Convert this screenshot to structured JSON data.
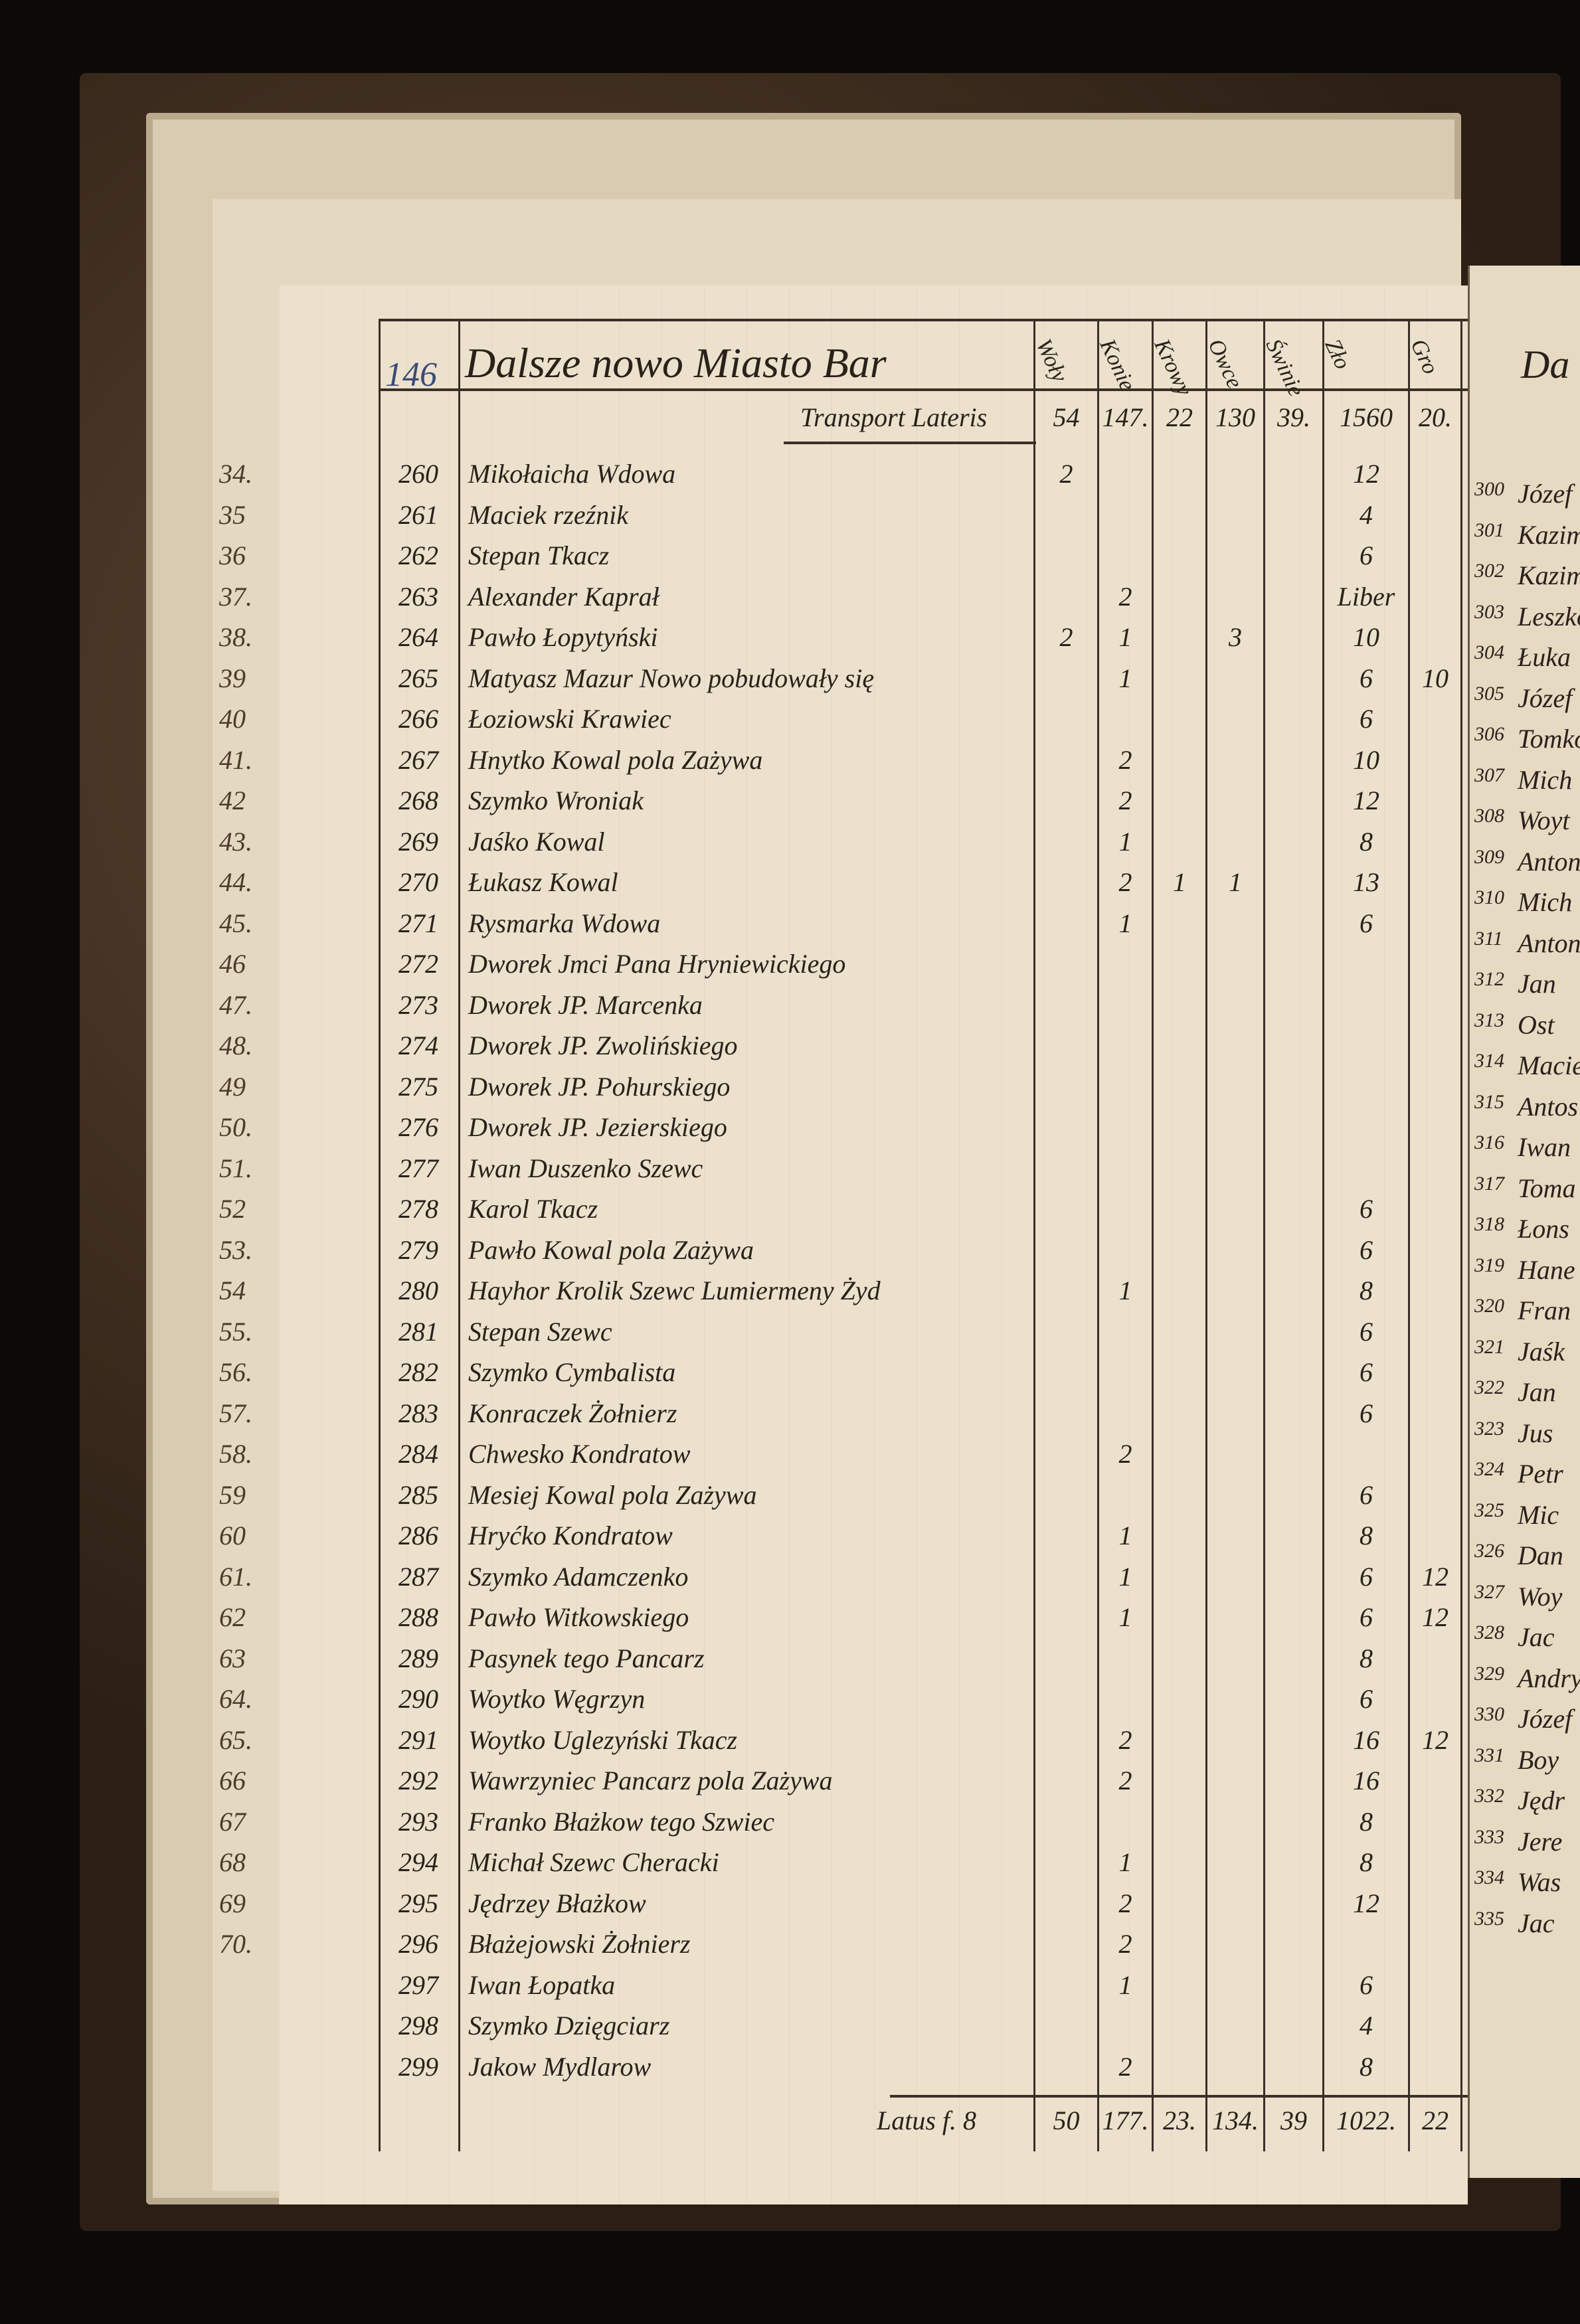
{
  "page_number": "146",
  "title": "Dalsze nowo Miasto Bar",
  "columns": [
    "Woły",
    "Konie",
    "Krowy",
    "Owce",
    "Świnie",
    "Zło",
    "Gro"
  ],
  "transport": {
    "label": "Transport Lateris",
    "values": [
      "54",
      "147.",
      "22",
      "130",
      "39.",
      "1560",
      "20."
    ]
  },
  "rows": [
    {
      "m": "34.",
      "n": "260",
      "name": "Mikołaicha Wdowa",
      "v": [
        "2",
        "",
        "",
        "",
        "",
        "12",
        ""
      ]
    },
    {
      "m": "35",
      "n": "261",
      "name": "Maciek rzeźnik",
      "v": [
        "",
        "",
        "",
        "",
        "",
        "4",
        ""
      ]
    },
    {
      "m": "36",
      "n": "262",
      "name": "Stepan Tkacz",
      "v": [
        "",
        "",
        "",
        "",
        "",
        "6",
        ""
      ]
    },
    {
      "m": "37.",
      "n": "263",
      "name": "Alexander Kaprał",
      "v": [
        "",
        "2",
        "",
        "",
        "",
        "Liber",
        ""
      ]
    },
    {
      "m": "38.",
      "n": "264",
      "name": "Pawło Łopytyński",
      "v": [
        "2",
        "1",
        "",
        "3",
        "",
        "10",
        ""
      ]
    },
    {
      "m": "39",
      "n": "265",
      "name": "Matyasz Mazur Nowo pobudowały się",
      "v": [
        "",
        "1",
        "",
        "",
        "",
        "6",
        "10"
      ]
    },
    {
      "m": "40",
      "n": "266",
      "name": "Łoziowski Krawiec",
      "v": [
        "",
        "",
        "",
        "",
        "",
        "6",
        ""
      ]
    },
    {
      "m": "41.",
      "n": "267",
      "name": "Hnytko Kowal pola Zażywa",
      "v": [
        "",
        "2",
        "",
        "",
        "",
        "10",
        ""
      ]
    },
    {
      "m": "42",
      "n": "268",
      "name": "Szymko Wroniak",
      "v": [
        "",
        "2",
        "",
        "",
        "",
        "12",
        ""
      ]
    },
    {
      "m": "43.",
      "n": "269",
      "name": "Jaśko Kowal",
      "v": [
        "",
        "1",
        "",
        "",
        "",
        "8",
        ""
      ]
    },
    {
      "m": "44.",
      "n": "270",
      "name": "Łukasz Kowal",
      "v": [
        "",
        "2",
        "1",
        "1",
        "",
        "13",
        ""
      ]
    },
    {
      "m": "45.",
      "n": "271",
      "name": "Rysmarka Wdowa",
      "v": [
        "",
        "1",
        "",
        "",
        "",
        "6",
        ""
      ]
    },
    {
      "m": "46",
      "n": "272",
      "name": "Dworek Jmci Pana Hryniewickiego",
      "v": [
        "",
        "",
        "",
        "",
        "",
        "",
        ""
      ]
    },
    {
      "m": "47.",
      "n": "273",
      "name": "Dworek JP. Marcenka",
      "v": [
        "",
        "",
        "",
        "",
        "",
        "",
        ""
      ]
    },
    {
      "m": "48.",
      "n": "274",
      "name": "Dworek JP. Zwolińskiego",
      "v": [
        "",
        "",
        "",
        "",
        "",
        "",
        ""
      ]
    },
    {
      "m": "49",
      "n": "275",
      "name": "Dworek JP. Pohurskiego",
      "v": [
        "",
        "",
        "",
        "",
        "",
        "",
        ""
      ]
    },
    {
      "m": "50.",
      "n": "276",
      "name": "Dworek JP. Jezierskiego",
      "v": [
        "",
        "",
        "",
        "",
        "",
        "",
        ""
      ]
    },
    {
      "m": "51.",
      "n": "277",
      "name": "Iwan Duszenko Szewc",
      "v": [
        "",
        "",
        "",
        "",
        "",
        "",
        ""
      ]
    },
    {
      "m": "52",
      "n": "278",
      "name": "Karol Tkacz",
      "v": [
        "",
        "",
        "",
        "",
        "",
        "6",
        ""
      ]
    },
    {
      "m": "53.",
      "n": "279",
      "name": "Pawło Kowal pola Zażywa",
      "v": [
        "",
        "",
        "",
        "",
        "",
        "6",
        ""
      ]
    },
    {
      "m": "54",
      "n": "280",
      "name": "Hayhor Krolik Szewc Lumiermeny Żyd",
      "v": [
        "",
        "1",
        "",
        "",
        "",
        "8",
        ""
      ]
    },
    {
      "m": "55.",
      "n": "281",
      "name": "Stepan Szewc",
      "v": [
        "",
        "",
        "",
        "",
        "",
        "6",
        ""
      ]
    },
    {
      "m": "56.",
      "n": "282",
      "name": "Szymko Cymbalista",
      "v": [
        "",
        "",
        "",
        "",
        "",
        "6",
        ""
      ]
    },
    {
      "m": "57.",
      "n": "283",
      "name": "Konraczek Żołnierz",
      "v": [
        "",
        "",
        "",
        "",
        "",
        "6",
        ""
      ]
    },
    {
      "m": "58.",
      "n": "284",
      "name": "Chwesko Kondratow",
      "v": [
        "",
        "2",
        "",
        "",
        "",
        "",
        ""
      ]
    },
    {
      "m": "59",
      "n": "285",
      "name": "Mesiej Kowal pola Zażywa",
      "v": [
        "",
        "",
        "",
        "",
        "",
        "6",
        ""
      ]
    },
    {
      "m": "60",
      "n": "286",
      "name": "Hryćko Kondratow",
      "v": [
        "",
        "1",
        "",
        "",
        "",
        "8",
        ""
      ]
    },
    {
      "m": "61.",
      "n": "287",
      "name": "Szymko Adamczenko",
      "v": [
        "",
        "1",
        "",
        "",
        "",
        "6",
        "12"
      ]
    },
    {
      "m": "62",
      "n": "288",
      "name": "Pawło Witkowskiego",
      "v": [
        "",
        "1",
        "",
        "",
        "",
        "6",
        "12"
      ]
    },
    {
      "m": "63",
      "n": "289",
      "name": "Pasynek tego Pancarz",
      "v": [
        "",
        "",
        "",
        "",
        "",
        "8",
        ""
      ]
    },
    {
      "m": "64.",
      "n": "290",
      "name": "Woytko Węgrzyn",
      "v": [
        "",
        "",
        "",
        "",
        "",
        "6",
        ""
      ]
    },
    {
      "m": "65.",
      "n": "291",
      "name": "Woytko Uglezyński Tkacz",
      "v": [
        "",
        "2",
        "",
        "",
        "",
        "16",
        "12"
      ]
    },
    {
      "m": "66",
      "n": "292",
      "name": "Wawrzyniec Pancarz pola Zażywa",
      "v": [
        "",
        "2",
        "",
        "",
        "",
        "16",
        ""
      ]
    },
    {
      "m": "67",
      "n": "293",
      "name": "Franko Błażkow tego Szwiec",
      "v": [
        "",
        "",
        "",
        "",
        "",
        "8",
        ""
      ]
    },
    {
      "m": "68",
      "n": "294",
      "name": "Michał Szewc Cheracki",
      "v": [
        "",
        "1",
        "",
        "",
        "",
        "8",
        ""
      ]
    },
    {
      "m": "69",
      "n": "295",
      "name": "Jędrzey Błażkow",
      "v": [
        "",
        "2",
        "",
        "",
        "",
        "12",
        ""
      ]
    },
    {
      "m": "70.",
      "n": "296",
      "name": "Błażejowski Żołnierz",
      "v": [
        "",
        "2",
        "",
        "",
        "",
        "",
        ""
      ]
    },
    {
      "m": "",
      "n": "297",
      "name": "Iwan Łopatka",
      "v": [
        "",
        "1",
        "",
        "",
        "",
        "6",
        ""
      ]
    },
    {
      "m": "",
      "n": "298",
      "name": "Szymko Dzięgciarz",
      "v": [
        "",
        "",
        "",
        "",
        "",
        "4",
        ""
      ]
    },
    {
      "m": "",
      "n": "299",
      "name": "Jakow Mydlarow",
      "v": [
        "",
        "2",
        "",
        "",
        "",
        "8",
        ""
      ]
    }
  ],
  "total": {
    "label": "Latus f. 8",
    "values": [
      "50",
      "177.",
      "23.",
      "134.",
      "39",
      "1022.",
      "22"
    ]
  },
  "right_page": {
    "title": "Da",
    "rows": [
      {
        "n": "300",
        "name": "Józef"
      },
      {
        "n": "301",
        "name": "Kazim"
      },
      {
        "n": "302",
        "name": "Kazim"
      },
      {
        "n": "303",
        "name": "Leszko"
      },
      {
        "n": "304",
        "name": "Łuka"
      },
      {
        "n": "305",
        "name": "Józef"
      },
      {
        "n": "306",
        "name": "Tomko"
      },
      {
        "n": "307",
        "name": "Mich"
      },
      {
        "n": "308",
        "name": "Woyt"
      },
      {
        "n": "309",
        "name": "Anton"
      },
      {
        "n": "310",
        "name": "Mich"
      },
      {
        "n": "311",
        "name": "Anton"
      },
      {
        "n": "312",
        "name": "Jan"
      },
      {
        "n": "313",
        "name": "Ost"
      },
      {
        "n": "314",
        "name": "Macie"
      },
      {
        "n": "315",
        "name": "Antos"
      },
      {
        "n": "316",
        "name": "Iwan"
      },
      {
        "n": "317",
        "name": "Toma"
      },
      {
        "n": "318",
        "name": "Łons"
      },
      {
        "n": "319",
        "name": "Hane"
      },
      {
        "n": "320",
        "name": "Fran"
      },
      {
        "n": "321",
        "name": "Jaśk"
      },
      {
        "n": "322",
        "name": "Jan"
      },
      {
        "n": "323",
        "name": "Jus"
      },
      {
        "n": "324",
        "name": "Petr"
      },
      {
        "n": "325",
        "name": "Mic"
      },
      {
        "n": "326",
        "name": "Dan"
      },
      {
        "n": "327",
        "name": "Woy"
      },
      {
        "n": "328",
        "name": "Jac"
      },
      {
        "n": "329",
        "name": "Andry"
      },
      {
        "n": "330",
        "name": "Józef"
      },
      {
        "n": "331",
        "name": "Boy"
      },
      {
        "n": "332",
        "name": "Jędr"
      },
      {
        "n": "333",
        "name": "Jere"
      },
      {
        "n": "334",
        "name": "Was"
      },
      {
        "n": "335",
        "name": "Jac"
      }
    ]
  }
}
